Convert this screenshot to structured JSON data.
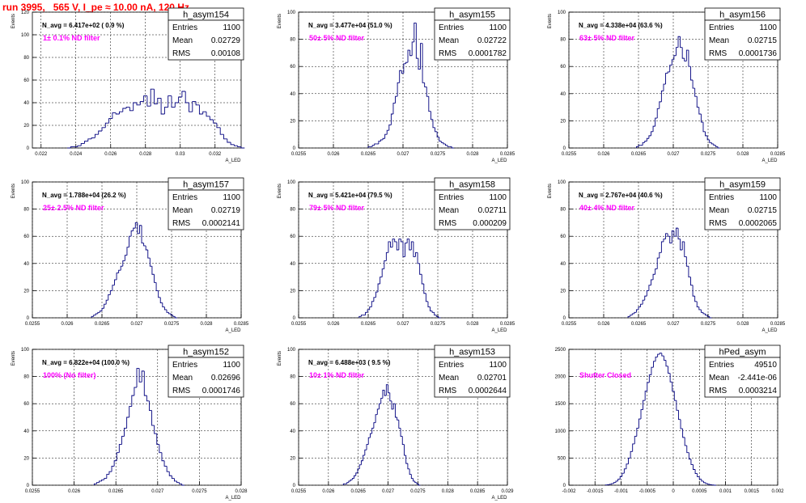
{
  "page": {
    "title": "run 3995,   565 V, I_pe ≈ 10.00 nA, 120 Hz"
  },
  "chart_data": [
    {
      "type": "bar",
      "name": "h_asym154",
      "nline": "N_avg = 6.417e+02 ( 0.9 %)",
      "label": "1± 0.1% ND filter",
      "stats": {
        "Entries": "1100",
        "Mean": "0.02729",
        "RMS": "0.00108"
      },
      "ylabel": "Events",
      "xlabel": "A_LED",
      "xlim": [
        0.0215,
        0.0335
      ],
      "ylim": [
        0,
        120
      ],
      "xticks": [
        "0.022",
        "0.024",
        "0.026",
        "0.028",
        "0.03",
        "0.032"
      ],
      "xtickvals": [
        0.022,
        0.024,
        0.026,
        0.028,
        0.03,
        0.032
      ],
      "yticks": [
        "0",
        "20",
        "40",
        "60",
        "80",
        "100",
        "120"
      ],
      "ytickvals": [
        0,
        20,
        40,
        60,
        80,
        100,
        120
      ],
      "bin": 0.0002,
      "xstart": 0.0235,
      "values": [
        0,
        1,
        1,
        2,
        4,
        6,
        8,
        9,
        12,
        15,
        18,
        22,
        26,
        31,
        30,
        32,
        35,
        36,
        33,
        40,
        38,
        41,
        46,
        37,
        52,
        39,
        44,
        30,
        36,
        46,
        36,
        40,
        45,
        50,
        40,
        32,
        41,
        38,
        30,
        32,
        28,
        25,
        22,
        18,
        12,
        8,
        5,
        3,
        2,
        1,
        0
      ]
    },
    {
      "type": "bar",
      "name": "h_asym155",
      "nline": "N_avg = 3.477e+04 (51.0 %)",
      "label": "50± 5% ND filter",
      "stats": {
        "Entries": "1100",
        "Mean": "0.02722",
        "RMS": "0.0001782"
      },
      "ylabel": "Events",
      "xlabel": "A_LED",
      "xlim": [
        0.0255,
        0.0285
      ],
      "ylim": [
        0,
        100
      ],
      "xticks": [
        "0.0255",
        "0.026",
        "0.0265",
        "0.027",
        "0.0275",
        "0.028",
        "0.0285"
      ],
      "xtickvals": [
        0.0255,
        0.026,
        0.0265,
        0.027,
        0.0275,
        0.028,
        0.0285
      ],
      "yticks": [
        "0",
        "20",
        "40",
        "60",
        "80",
        "100"
      ],
      "ytickvals": [
        0,
        20,
        40,
        60,
        80,
        100
      ],
      "bin": 3e-05,
      "xstart": 0.0265,
      "values": [
        1,
        1,
        2,
        3,
        3,
        5,
        6,
        7,
        10,
        13,
        17,
        25,
        33,
        38,
        48,
        57,
        55,
        62,
        63,
        72,
        68,
        78,
        92,
        66,
        58,
        77,
        48,
        45,
        38,
        27,
        21,
        15,
        12,
        8,
        5,
        4,
        3,
        2,
        1,
        1,
        0
      ]
    },
    {
      "type": "bar",
      "name": "h_asym156",
      "nline": "N_avg = 4.338e+04 (63.6 %)",
      "label": "63± 5% ND filter",
      "stats": {
        "Entries": "1100",
        "Mean": "0.02715",
        "RMS": "0.0001736"
      },
      "ylabel": "Events",
      "xlabel": "A_LED",
      "xlim": [
        0.0255,
        0.0285
      ],
      "ylim": [
        0,
        100
      ],
      "xticks": [
        "0.0255",
        "0.026",
        "0.0265",
        "0.027",
        "0.0275",
        "0.028",
        "0.0285"
      ],
      "xtickvals": [
        0.0255,
        0.026,
        0.0265,
        0.027,
        0.0275,
        0.028,
        0.0285
      ],
      "yticks": [
        "0",
        "20",
        "40",
        "60",
        "80",
        "100"
      ],
      "ytickvals": [
        0,
        20,
        40,
        60,
        80,
        100
      ],
      "bin": 3e-05,
      "xstart": 0.02647,
      "values": [
        1,
        2,
        2,
        4,
        5,
        7,
        9,
        12,
        16,
        22,
        29,
        34,
        42,
        47,
        55,
        56,
        61,
        65,
        68,
        74,
        82,
        74,
        66,
        64,
        72,
        60,
        50,
        44,
        38,
        30,
        25,
        19,
        12,
        9,
        6,
        4,
        3,
        2,
        1,
        0
      ]
    },
    {
      "type": "bar",
      "name": "h_asym157",
      "nline": "N_avg = 1.788e+04 (26.2 %)",
      "label": "25± 2.5% ND filter",
      "stats": {
        "Entries": "1100",
        "Mean": "0.02719",
        "RMS": "0.0002141"
      },
      "ylabel": "Events",
      "xlabel": "A_LED",
      "xlim": [
        0.0255,
        0.0285
      ],
      "ylim": [
        0,
        100
      ],
      "xticks": [
        "0.0255",
        "0.026",
        "0.0265",
        "0.027",
        "0.0275",
        "0.028",
        "0.0285"
      ],
      "xtickvals": [
        0.0255,
        0.026,
        0.0265,
        0.027,
        0.0275,
        0.028,
        0.0285
      ],
      "yticks": [
        "0",
        "20",
        "40",
        "60",
        "80",
        "100"
      ],
      "ytickvals": [
        0,
        20,
        40,
        60,
        80,
        100
      ],
      "bin": 3e-05,
      "xstart": 0.02635,
      "values": [
        1,
        2,
        3,
        4,
        5,
        7,
        10,
        13,
        17,
        20,
        24,
        28,
        33,
        35,
        38,
        42,
        46,
        52,
        60,
        64,
        66,
        70,
        62,
        68,
        55,
        53,
        50,
        44,
        38,
        32,
        26,
        20,
        15,
        11,
        8,
        6,
        4,
        3,
        2,
        1,
        0
      ]
    },
    {
      "type": "bar",
      "name": "h_asym158",
      "nline": "N_avg = 5.421e+04 (79.5 %)",
      "label": "79± 5% ND filter",
      "stats": {
        "Entries": "1100",
        "Mean": "0.02711",
        "RMS": "0.000209"
      },
      "ylabel": "Events",
      "xlabel": "A_LED",
      "xlim": [
        0.0255,
        0.0285
      ],
      "ylim": [
        0,
        100
      ],
      "xticks": [
        "0.0255",
        "0.026",
        "0.0265",
        "0.027",
        "0.0275",
        "0.028",
        "0.0285"
      ],
      "xtickvals": [
        0.0255,
        0.026,
        0.0265,
        0.027,
        0.0275,
        0.028,
        0.0285
      ],
      "yticks": [
        "0",
        "20",
        "40",
        "60",
        "80",
        "100"
      ],
      "ytickvals": [
        0,
        20,
        40,
        60,
        80,
        100
      ],
      "bin": 3e-05,
      "xstart": 0.02637,
      "values": [
        1,
        2,
        2,
        4,
        6,
        8,
        12,
        15,
        19,
        25,
        30,
        36,
        42,
        48,
        56,
        52,
        58,
        56,
        50,
        58,
        56,
        45,
        55,
        58,
        50,
        56,
        45,
        48,
        40,
        32,
        25,
        18,
        12,
        8,
        5,
        4,
        2,
        1,
        0
      ]
    },
    {
      "type": "bar",
      "name": "h_asym159",
      "nline": "N_avg = 2.767e+04 (40.6 %)",
      "label": "40± 4% ND filter",
      "stats": {
        "Entries": "1100",
        "Mean": "0.02715",
        "RMS": "0.0002065"
      },
      "ylabel": "Events",
      "xlabel": "A_LED",
      "xlim": [
        0.0255,
        0.0285
      ],
      "ylim": [
        0,
        100
      ],
      "xticks": [
        "0.0255",
        "0.026",
        "0.0265",
        "0.027",
        "0.0275",
        "0.028",
        "0.0285"
      ],
      "xtickvals": [
        0.0255,
        0.026,
        0.0265,
        0.027,
        0.0275,
        0.028,
        0.0285
      ],
      "yticks": [
        "0",
        "20",
        "40",
        "60",
        "80",
        "100"
      ],
      "ytickvals": [
        0,
        20,
        40,
        60,
        80,
        100
      ],
      "bin": 3e-05,
      "xstart": 0.02635,
      "values": [
        1,
        2,
        3,
        4,
        6,
        8,
        10,
        13,
        16,
        20,
        24,
        28,
        32,
        36,
        44,
        48,
        56,
        58,
        62,
        60,
        55,
        64,
        60,
        66,
        58,
        50,
        56,
        45,
        38,
        30,
        24,
        16,
        12,
        8,
        6,
        4,
        3,
        2,
        1,
        0
      ]
    },
    {
      "type": "bar",
      "name": "h_asym152",
      "nline": "N_avg = 6.822e+04 (100.0 %)",
      "label": "100% (No filter)",
      "stats": {
        "Entries": "1100",
        "Mean": "0.02696",
        "RMS": "0.0001746"
      },
      "ylabel": "Events",
      "xlabel": "A_LED",
      "xlim": [
        0.0255,
        0.028
      ],
      "ylim": [
        0,
        100
      ],
      "xticks": [
        "0.0255",
        "0.026",
        "0.0265",
        "0.027",
        "0.0275",
        "0.028"
      ],
      "xtickvals": [
        0.0255,
        0.026,
        0.0265,
        0.027,
        0.0275,
        0.028
      ],
      "yticks": [
        "0",
        "20",
        "40",
        "60",
        "80",
        "100"
      ],
      "ytickvals": [
        0,
        20,
        40,
        60,
        80,
        100
      ],
      "bin": 3e-05,
      "xstart": 0.02624,
      "values": [
        1,
        2,
        3,
        4,
        5,
        8,
        10,
        14,
        18,
        24,
        30,
        36,
        42,
        50,
        58,
        66,
        72,
        86,
        76,
        84,
        66,
        62,
        55,
        44,
        38,
        30,
        24,
        18,
        14,
        10,
        7,
        5,
        3,
        2,
        1,
        0
      ]
    },
    {
      "type": "bar",
      "name": "h_asym153",
      "nline": "N_avg = 6.488e+03 ( 9.5 %)",
      "label": "10± 1% ND filter",
      "stats": {
        "Entries": "1100",
        "Mean": "0.02701",
        "RMS": "0.0002644"
      },
      "ylabel": "Events",
      "xlabel": "A_LED",
      "xlim": [
        0.0255,
        0.029
      ],
      "ylim": [
        0,
        100
      ],
      "xticks": [
        "0.0255",
        "0.026",
        "0.0265",
        "0.027",
        "0.0275",
        "0.028",
        "0.0285",
        "0.029"
      ],
      "xtickvals": [
        0.0255,
        0.026,
        0.0265,
        0.027,
        0.0275,
        0.028,
        0.0285,
        0.029
      ],
      "yticks": [
        "0",
        "20",
        "40",
        "60",
        "80",
        "100"
      ],
      "ytickvals": [
        0,
        20,
        40,
        60,
        80,
        100
      ],
      "bin": 3e-05,
      "xstart": 0.02625,
      "values": [
        1,
        1,
        2,
        3,
        4,
        5,
        7,
        9,
        12,
        15,
        18,
        22,
        26,
        30,
        35,
        38,
        42,
        46,
        52,
        56,
        60,
        64,
        70,
        66,
        74,
        68,
        62,
        56,
        60,
        50,
        48,
        42,
        36,
        30,
        22,
        16,
        12,
        8,
        5,
        3,
        2,
        1,
        0
      ]
    },
    {
      "type": "bar",
      "name": "hPed_asym",
      "nline": "",
      "label": "Shutter Closed",
      "stats": {
        "Entries": "49510",
        "Mean": "-2.441e-06",
        "RMS": "0.0003214"
      },
      "ylabel": "",
      "xlabel": "",
      "xlim": [
        -0.002,
        0.002
      ],
      "ylim": [
        0,
        2500
      ],
      "xticks": [
        "-0.002",
        "-0.0015",
        "-0.001",
        "-0.0005",
        "0",
        "0.0005",
        "0.001",
        "0.0015",
        "0.002"
      ],
      "xtickvals": [
        -0.002,
        -0.0015,
        -0.001,
        -0.0005,
        0,
        0.0005,
        0.001,
        0.0015,
        0.002
      ],
      "yticks": [
        "0",
        "500",
        "1000",
        "1500",
        "2000",
        "2500"
      ],
      "ytickvals": [
        0,
        500,
        1000,
        1500,
        2000,
        2500
      ],
      "bin": 4e-05,
      "xstart": -0.0013,
      "values": [
        5,
        10,
        18,
        30,
        50,
        75,
        110,
        160,
        220,
        300,
        390,
        500,
        620,
        760,
        900,
        1050,
        1220,
        1390,
        1560,
        1730,
        1890,
        2030,
        2170,
        2280,
        2360,
        2410,
        2430,
        2380,
        2300,
        2190,
        2060,
        1900,
        1730,
        1560,
        1380,
        1210,
        1040,
        880,
        730,
        600,
        480,
        380,
        290,
        215,
        155,
        110,
        75,
        48,
        30,
        18,
        10,
        5,
        0
      ]
    }
  ]
}
